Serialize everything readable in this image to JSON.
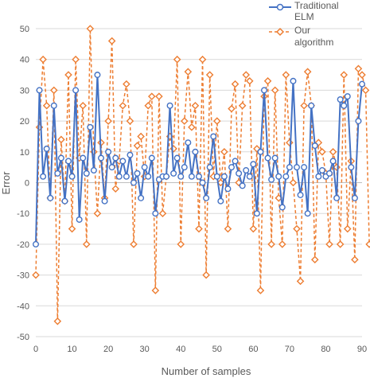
{
  "chart_data": {
    "type": "line",
    "title": "",
    "xlabel": "Number of samples",
    "ylabel": "Error",
    "xlim": [
      0,
      90
    ],
    "ylim": [
      -50,
      50
    ],
    "x_ticks": [
      0,
      10,
      20,
      30,
      40,
      50,
      60,
      70,
      80,
      90
    ],
    "y_ticks": [
      -50,
      -40,
      -30,
      -20,
      -10,
      0,
      10,
      20,
      30,
      40,
      50
    ],
    "grid": "horizontal",
    "legend_position": "top-right",
    "series": [
      {
        "name": "Traditional ELM",
        "color": "#4472C4",
        "marker": "circle",
        "line": "solid",
        "values": [
          -20,
          30,
          2,
          11,
          -5,
          25,
          3,
          8,
          -6,
          7,
          2,
          30,
          -12,
          8,
          3,
          18,
          4,
          35,
          8,
          -6,
          10,
          5,
          8,
          2,
          7,
          2,
          9,
          0,
          3,
          -5,
          5,
          2,
          8,
          -10,
          1,
          2,
          2,
          25,
          3,
          8,
          2,
          5,
          13,
          2,
          10,
          2,
          0,
          -5,
          5,
          15,
          2,
          -6,
          2,
          -2,
          5,
          7,
          3,
          -1,
          4,
          2,
          6,
          -10,
          10,
          30,
          8,
          1,
          8,
          2,
          -8,
          2,
          5,
          33,
          5,
          -4,
          5,
          -10,
          25,
          12,
          2,
          4,
          2,
          3,
          7,
          -5,
          27,
          25,
          28,
          5,
          -5,
          20,
          32
        ]
      },
      {
        "name": "Our algorithm",
        "color": "#ED7D31",
        "marker": "diamond",
        "line": "dashed",
        "values": [
          -30,
          18,
          40,
          25,
          -5,
          30,
          -45,
          14,
          -6,
          35,
          -15,
          40,
          8,
          25,
          -20,
          50,
          10,
          -10,
          13,
          -5,
          20,
          46,
          -2,
          7,
          25,
          32,
          20,
          -20,
          12,
          15,
          2,
          25,
          28,
          -35,
          28,
          -10,
          2,
          15,
          11,
          40,
          -20,
          20,
          36,
          18,
          25,
          -15,
          40,
          -30,
          35,
          2,
          20,
          0,
          10,
          -15,
          24,
          32,
          0,
          25,
          35,
          33,
          -15,
          11,
          -35,
          28,
          33,
          -20,
          30,
          -5,
          -20,
          35,
          13,
          0,
          -15,
          -32,
          25,
          36,
          25,
          -25,
          13,
          10,
          3,
          -20,
          10,
          5,
          -20,
          35,
          -15,
          7,
          -25,
          37,
          35,
          30,
          -20
        ]
      }
    ]
  }
}
